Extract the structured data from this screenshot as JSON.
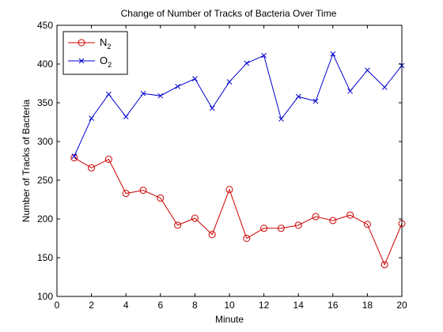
{
  "chart_data": {
    "type": "line",
    "title": "Change of Number of Tracks of Bacteria Over Time",
    "xlabel": "Minute",
    "ylabel": "Number of Tracks of Bacteria",
    "xlim": [
      0,
      20
    ],
    "ylim": [
      100,
      450
    ],
    "x_ticks": [
      0,
      2,
      4,
      6,
      8,
      10,
      12,
      14,
      16,
      18,
      20
    ],
    "y_ticks": [
      100,
      150,
      200,
      250,
      300,
      350,
      400,
      450
    ],
    "grid": false,
    "legend_position": "top-left",
    "x": [
      1,
      2,
      3,
      4,
      5,
      6,
      7,
      8,
      9,
      10,
      11,
      12,
      13,
      14,
      15,
      16,
      17,
      18,
      19,
      20
    ],
    "series": [
      {
        "name": "N2",
        "name_base": "N",
        "name_sub": "2",
        "color": "#cc0000",
        "marker": "circle",
        "values": [
          279,
          266,
          277,
          233,
          237,
          227,
          192,
          201,
          180,
          238,
          175,
          188,
          188,
          192,
          203,
          198,
          205,
          193,
          141,
          194
        ]
      },
      {
        "name": "O2",
        "name_base": "O",
        "name_sub": "2",
        "color": "#0000cc",
        "marker": "x",
        "values": [
          281,
          330,
          361,
          332,
          362,
          359,
          371,
          381,
          343,
          377,
          401,
          411,
          329,
          358,
          352,
          413,
          365,
          392,
          370,
          398
        ]
      }
    ]
  }
}
